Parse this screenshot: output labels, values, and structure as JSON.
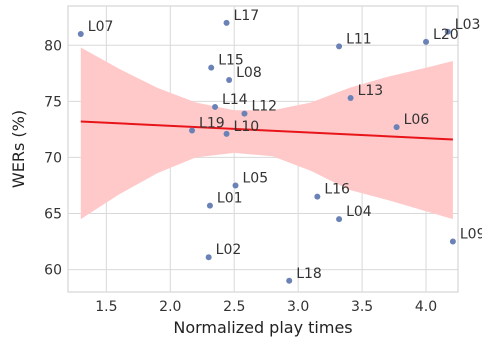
{
  "chart_data": {
    "type": "scatter",
    "title": "",
    "xlabel": "Normalized play times",
    "ylabel": "WERs (%)",
    "xlim": [
      1.2,
      4.25
    ],
    "ylim": [
      58.0,
      83.5
    ],
    "xticks": [
      1.5,
      2.0,
      2.5,
      3.0,
      3.5,
      4.0
    ],
    "yticks": [
      60,
      65,
      70,
      75,
      80
    ],
    "xtick_labels": [
      "1.5",
      "2.0",
      "2.5",
      "3.0",
      "3.5",
      "4.0"
    ],
    "ytick_labels": [
      "60",
      "65",
      "70",
      "75",
      "80"
    ],
    "grid": true,
    "point_color": "#6A82B6",
    "points": [
      {
        "label": "L01",
        "x": 2.31,
        "y": 65.7
      },
      {
        "label": "L02",
        "x": 2.3,
        "y": 61.1
      },
      {
        "label": "L03",
        "x": 4.17,
        "y": 81.2
      },
      {
        "label": "L04",
        "x": 3.32,
        "y": 64.5
      },
      {
        "label": "L05",
        "x": 2.51,
        "y": 67.5
      },
      {
        "label": "L06",
        "x": 3.77,
        "y": 72.7
      },
      {
        "label": "L07",
        "x": 1.3,
        "y": 81.0
      },
      {
        "label": "L08",
        "x": 2.46,
        "y": 76.9
      },
      {
        "label": "L09",
        "x": 4.21,
        "y": 62.5
      },
      {
        "label": "L10",
        "x": 2.44,
        "y": 72.1
      },
      {
        "label": "L11",
        "x": 3.32,
        "y": 79.9
      },
      {
        "label": "L12",
        "x": 2.58,
        "y": 73.9
      },
      {
        "label": "L13",
        "x": 3.41,
        "y": 75.3
      },
      {
        "label": "L14",
        "x": 2.35,
        "y": 74.5
      },
      {
        "label": "L15",
        "x": 2.32,
        "y": 78.0
      },
      {
        "label": "L16",
        "x": 3.15,
        "y": 66.5
      },
      {
        "label": "L17",
        "x": 2.44,
        "y": 82.0
      },
      {
        "label": "L18",
        "x": 2.93,
        "y": 59.0
      },
      {
        "label": "L19",
        "x": 2.17,
        "y": 72.4
      },
      {
        "label": "L20",
        "x": 4.0,
        "y": 80.3
      }
    ],
    "regression": {
      "color": "#E8141A",
      "x": [
        1.3,
        4.21
      ],
      "y": [
        73.2,
        71.6
      ]
    },
    "confidence_band": {
      "color": "#FFC9C9",
      "x": [
        1.3,
        1.6,
        1.9,
        2.2,
        2.5,
        2.8,
        3.1,
        3.4,
        3.7,
        4.0,
        4.21
      ],
      "upper": [
        79.8,
        77.9,
        76.2,
        74.9,
        74.2,
        74.2,
        74.9,
        76.2,
        77.2,
        78.0,
        78.6
      ],
      "lower": [
        64.5,
        66.7,
        68.6,
        70.0,
        70.4,
        70.1,
        68.8,
        67.1,
        66.2,
        65.2,
        64.5
      ]
    }
  }
}
